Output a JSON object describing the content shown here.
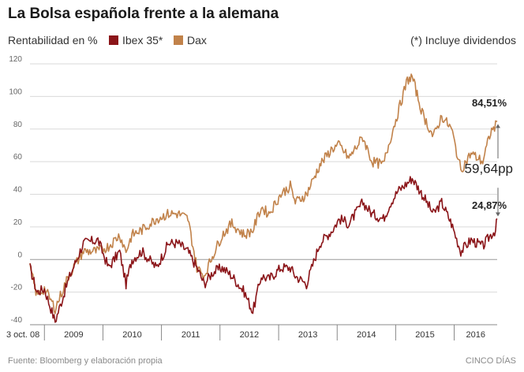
{
  "title": "La Bolsa española frente a la alemana",
  "footer": {
    "source": "Fuente: Bloomberg y elaboración propia",
    "brand": "CINCO DÍAS"
  },
  "chart_data": {
    "type": "line",
    "title": "La Bolsa española frente a la alemana",
    "ylabel": "Rentabilidad en %",
    "note": "(*) Incluye dividendos",
    "ylim": [
      -40,
      120
    ],
    "y_ticks": [
      -40,
      -20,
      0,
      20,
      40,
      60,
      80,
      100,
      120
    ],
    "x_labels": [
      "3 oct. 08",
      "2009",
      "2010",
      "2011",
      "2012",
      "2013",
      "2014",
      "2015",
      "2016"
    ],
    "grid": true,
    "legend_position": "top-left",
    "colors": {
      "ibex": "#8b1519",
      "dax": "#c1824a"
    },
    "series": [
      {
        "name": "Ibex 35*",
        "x": [
          "2008-10-03",
          "2008-11-15",
          "2009-01-01",
          "2009-03-09",
          "2009-06-01",
          "2009-09-01",
          "2009-12-01",
          "2010-02-05",
          "2010-04-15",
          "2010-05-25",
          "2010-07-01",
          "2010-09-01",
          "2010-11-30",
          "2011-02-15",
          "2011-04-15",
          "2011-06-15",
          "2011-08-10",
          "2011-09-25",
          "2011-11-15",
          "2012-01-15",
          "2012-03-15",
          "2012-06-01",
          "2012-07-24",
          "2012-09-15",
          "2012-11-01",
          "2013-01-15",
          "2013-03-15",
          "2013-04-15",
          "2013-06-24",
          "2013-09-15",
          "2013-12-01",
          "2014-01-15",
          "2014-03-15",
          "2014-06-10",
          "2014-08-07",
          "2014-10-16",
          "2014-12-01",
          "2015-01-15",
          "2015-03-15",
          "2015-04-14",
          "2015-06-15",
          "2015-08-24",
          "2015-10-15",
          "2015-12-15",
          "2016-02-11",
          "2016-04-15",
          "2016-06-27",
          "2016-08-15",
          "2016-09-15",
          "2016-09-25"
        ],
        "y": [
          -5,
          -20,
          -18,
          -38,
          -12,
          10,
          12,
          -5,
          5,
          -15,
          0,
          5,
          -5,
          10,
          10,
          5,
          -5,
          -15,
          -8,
          -5,
          -10,
          -20,
          -32,
          -10,
          -12,
          -5,
          -5,
          -10,
          -15,
          10,
          18,
          25,
          22,
          35,
          28,
          25,
          35,
          42,
          47,
          50,
          40,
          28,
          35,
          22,
          5,
          12,
          8,
          15,
          18,
          25
        ]
      },
      {
        "name": "Dax",
        "x": [
          "2008-10-03",
          "2008-11-15",
          "2009-01-01",
          "2009-03-09",
          "2009-06-01",
          "2009-09-01",
          "2009-12-01",
          "2010-02-05",
          "2010-04-15",
          "2010-05-25",
          "2010-07-01",
          "2010-09-01",
          "2010-11-30",
          "2011-02-15",
          "2011-04-15",
          "2011-06-15",
          "2011-08-10",
          "2011-09-25",
          "2011-11-15",
          "2012-01-15",
          "2012-03-15",
          "2012-06-01",
          "2012-07-24",
          "2012-09-15",
          "2012-11-01",
          "2013-01-15",
          "2013-03-15",
          "2013-04-15",
          "2013-06-24",
          "2013-09-15",
          "2013-12-01",
          "2014-01-15",
          "2014-03-15",
          "2014-06-10",
          "2014-08-07",
          "2014-10-16",
          "2014-12-01",
          "2015-01-15",
          "2015-03-15",
          "2015-04-14",
          "2015-06-15",
          "2015-08-24",
          "2015-10-15",
          "2015-12-15",
          "2016-02-11",
          "2016-04-15",
          "2016-06-27",
          "2016-08-15",
          "2016-09-15",
          "2016-09-25"
        ],
        "y": [
          -5,
          -22,
          -18,
          -30,
          -10,
          5,
          5,
          8,
          15,
          5,
          15,
          18,
          25,
          28,
          28,
          25,
          -5,
          -10,
          2,
          15,
          22,
          15,
          18,
          32,
          28,
          40,
          45,
          35,
          40,
          58,
          68,
          70,
          62,
          75,
          60,
          58,
          75,
          90,
          110,
          112,
          90,
          75,
          88,
          80,
          55,
          65,
          60,
          78,
          82,
          84.51
        ]
      }
    ],
    "annotations": {
      "dax_end": "84,51%",
      "ibex_end": "24,87%",
      "gap": "59,64pp"
    }
  }
}
